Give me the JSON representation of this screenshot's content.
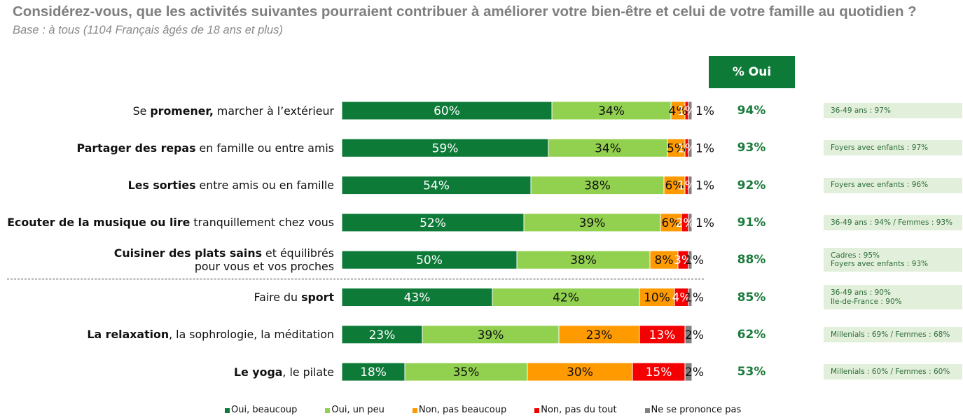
{
  "chart_data": {
    "type": "bar",
    "orientation": "horizontal",
    "stacked": true,
    "title": "Considérez-vous, que les activités suivantes pourraient contribuer à améliorer votre bien-être et celui de votre famille au quotidien ?",
    "subtitle": "Base : à tous (1104 Français âgés de 18 ans et plus)",
    "xlim": [
      0,
      100
    ],
    "grid": false,
    "legend_position": "bottom",
    "value_suffix": "%",
    "categories": [
      {
        "lines": [
          [
            {
              "text": "Se ",
              "bold": false
            },
            {
              "text": "promener,",
              "bold": true
            },
            {
              "text": " marcher à l’extérieur",
              "bold": false
            }
          ]
        ]
      },
      {
        "lines": [
          [
            {
              "text": "Partager des repas",
              "bold": true
            },
            {
              "text": " en famille ou entre amis",
              "bold": false
            }
          ]
        ]
      },
      {
        "lines": [
          [
            {
              "text": "Les sorties",
              "bold": true
            },
            {
              "text": " entre amis ou en famille",
              "bold": false
            }
          ]
        ]
      },
      {
        "lines": [
          [
            {
              "text": "Ecouter de la musique ou lire",
              "bold": true
            },
            {
              "text": " tranquillement chez vous",
              "bold": false
            }
          ]
        ]
      },
      {
        "lines": [
          [
            {
              "text": "Cuisiner des plats sains",
              "bold": true
            },
            {
              "text": " et équilibrés",
              "bold": false
            }
          ],
          [
            {
              "text": "pour vous et vos proches",
              "bold": false
            }
          ]
        ]
      },
      {
        "lines": [
          [
            {
              "text": "Faire du ",
              "bold": false
            },
            {
              "text": "sport",
              "bold": true
            }
          ]
        ]
      },
      {
        "lines": [
          [
            {
              "text": "La relaxation",
              "bold": true
            },
            {
              "text": ", la sophrologie, la méditation",
              "bold": false
            }
          ]
        ]
      },
      {
        "lines": [
          [
            {
              "text": "Le yoga",
              "bold": true
            },
            {
              "text": ", le pilate",
              "bold": false
            }
          ]
        ]
      }
    ],
    "series": [
      {
        "name": "Oui, beaucoup",
        "color": "#0e7a38",
        "values": [
          60,
          59,
          54,
          52,
          50,
          43,
          23,
          18
        ]
      },
      {
        "name": "Oui, un peu",
        "color": "#92d050",
        "values": [
          34,
          34,
          38,
          39,
          38,
          42,
          39,
          35
        ]
      },
      {
        "name": "Non, pas beaucoup",
        "color": "#ff9a00",
        "values": [
          4,
          5,
          6,
          6,
          8,
          10,
          23,
          30
        ]
      },
      {
        "name": "Non, pas du tout",
        "color": "#f50000",
        "values": [
          1,
          1,
          1,
          2,
          3,
          4,
          13,
          15
        ]
      },
      {
        "name": "Ne se prononce pas",
        "color": "#808080",
        "values": [
          1,
          1,
          1,
          1,
          1,
          1,
          2,
          2
        ]
      }
    ],
    "oui_total": {
      "header": "% Oui",
      "values": [
        94,
        93,
        92,
        91,
        88,
        85,
        62,
        53
      ]
    },
    "notes": [
      [
        "36-49 ans : 97%"
      ],
      [
        "Foyers avec enfants : 97%"
      ],
      [
        "Foyers avec enfants : 96%"
      ],
      [
        "36-49 ans : 94% / Femmes : 93%"
      ],
      [
        "Cadres : 95%",
        "Foyers avec enfants : 93%"
      ],
      [
        "36-49 ans : 90%",
        "Ile-de-France : 90%"
      ],
      [
        "Millenials : 69% / Femmes : 68%"
      ],
      [
        "Millenials : 60% / Femmes : 60%"
      ]
    ]
  },
  "colors": {
    "header_bg": "#0e7a38",
    "oui_text": "#1b7a3c",
    "note_bg": "#e2efda",
    "note_text": "#2e6e3c",
    "title_text": "#7f7f7f",
    "subtitle_text": "#8a8a8a"
  }
}
